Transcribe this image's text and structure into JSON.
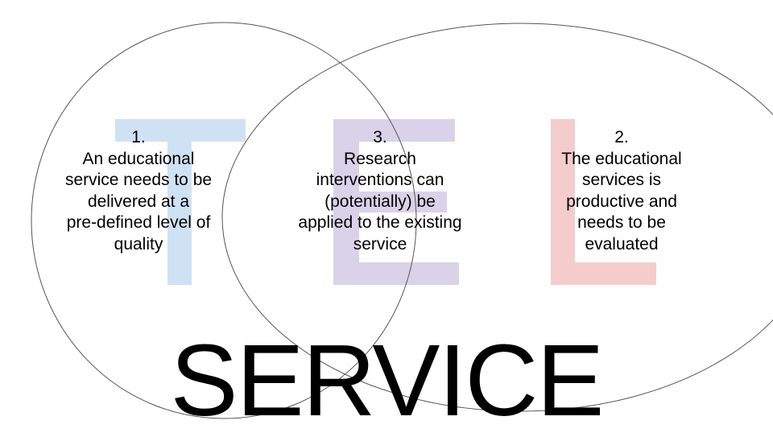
{
  "letters": [
    {
      "name": "T",
      "color": "#cfe2f3"
    },
    {
      "name": "E",
      "color": "#d9d2e9"
    },
    {
      "name": "L",
      "color": "#f4cccc"
    }
  ],
  "circle_stroke": "#555555",
  "text_1": {
    "lines": [
      "1.",
      "An educational",
      "service needs to be",
      "delivered at a",
      "pre-defined level of",
      "quality"
    ]
  },
  "text_3": {
    "lines": [
      "3.",
      "Research",
      "interventions can",
      "(potentially) be",
      "applied to the existing",
      "service"
    ]
  },
  "text_2": {
    "lines": [
      "2.",
      "The educational",
      "services is",
      "productive and",
      "needs to be",
      "evaluated"
    ]
  },
  "footer_word": "SERVICE"
}
